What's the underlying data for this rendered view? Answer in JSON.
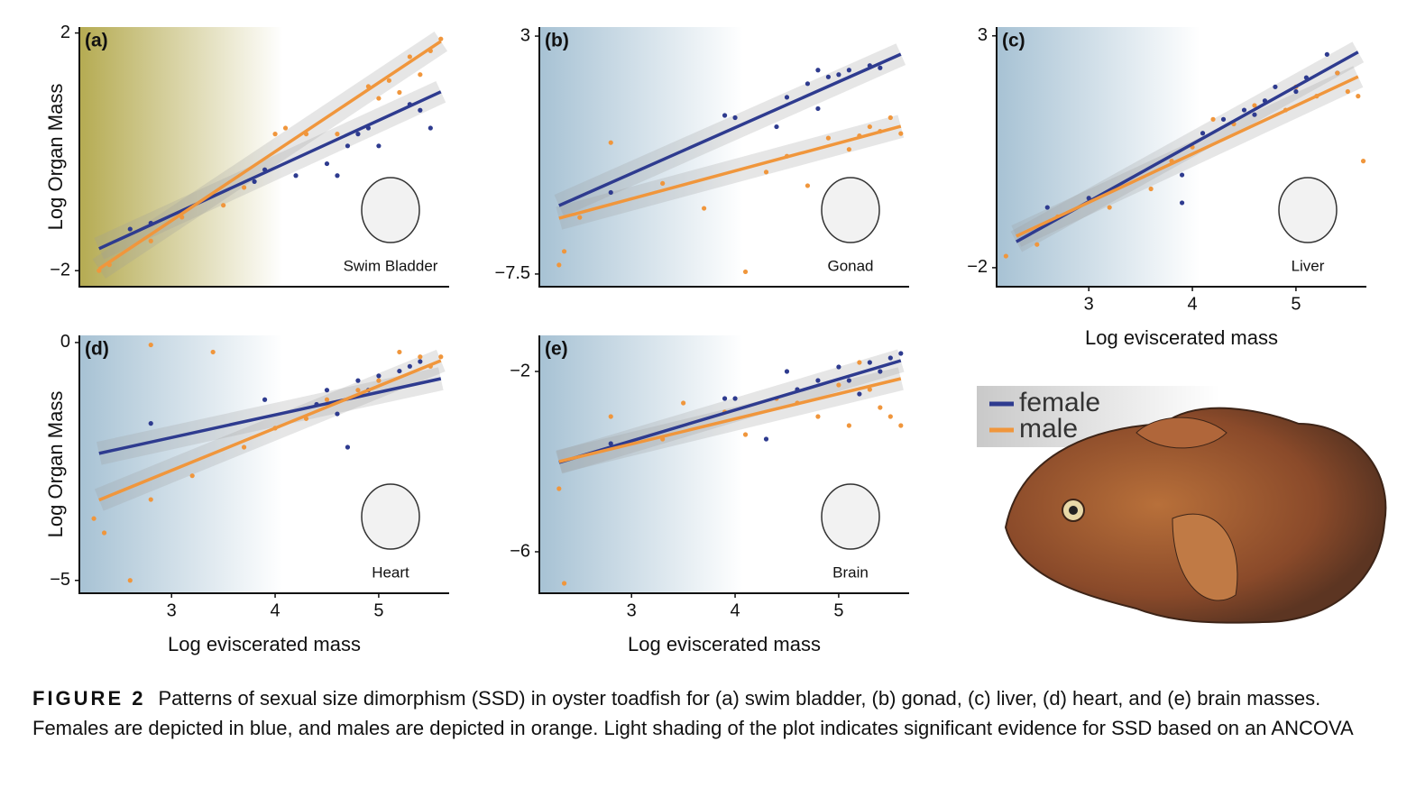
{
  "chart_data": [
    {
      "type": "scatter",
      "panel_label": "(a)",
      "organ": "Swim Bladder",
      "y_label": "Log Organ Mass",
      "shade_color": "#b5ab52",
      "xlim": [
        2.11,
        5.68
      ],
      "ylim": [
        -2.27,
        2.1
      ],
      "yticks": [
        {
          "value": -2,
          "label": "−2"
        },
        2
      ],
      "series": [
        {
          "color": "#2e3b8f",
          "x": [
            2.6,
            2.8,
            3.8,
            3.9,
            4.2,
            4.5,
            4.6,
            4.7,
            4.8,
            4.9,
            5.0,
            5.3,
            5.4,
            5.5
          ],
          "values": [
            -1.3,
            -1.2,
            -0.5,
            -0.3,
            -0.4,
            -0.2,
            -0.4,
            0.1,
            0.3,
            0.4,
            0.1,
            0.8,
            0.7,
            0.4
          ],
          "fit": {
            "x": [
              2.3,
              5.6
            ],
            "values": [
              -1.63,
              1.01
            ]
          }
        },
        {
          "color": "#f0963c",
          "x": [
            2.3,
            2.4,
            2.8,
            3.1,
            3.5,
            3.7,
            4.0,
            4.1,
            4.3,
            4.6,
            4.9,
            5.0,
            5.1,
            5.2,
            5.3,
            5.4,
            5.5,
            5.6
          ],
          "values": [
            -2.0,
            -1.9,
            -1.5,
            -1.1,
            -0.9,
            -0.6,
            0.3,
            0.4,
            0.3,
            0.3,
            1.1,
            0.9,
            1.2,
            1.0,
            1.6,
            1.3,
            1.7,
            1.9
          ],
          "fit": {
            "x": [
              2.3,
              5.6
            ],
            "values": [
              -1.97,
              1.86
            ]
          }
        }
      ]
    },
    {
      "type": "scatter",
      "panel_label": "(b)",
      "organ": "Gonad",
      "shade_color": "#a7c2d4",
      "xlim": [
        2.11,
        5.68
      ],
      "ylim": [
        -8.06,
        3.4
      ],
      "yticks": [
        {
          "value": -7.5,
          "label": "−7.5"
        },
        3
      ],
      "series": [
        {
          "color": "#2e3b8f",
          "x": [
            2.8,
            3.9,
            4.0,
            4.5,
            4.8,
            4.9,
            5.0,
            5.1,
            5.3,
            5.4,
            4.7,
            4.4,
            4.8
          ],
          "values": [
            -3.9,
            -0.5,
            -0.6,
            0.3,
            1.5,
            1.2,
            1.3,
            1.5,
            1.7,
            1.6,
            0.9,
            -1.0,
            -0.2
          ],
          "fit": {
            "x": [
              2.3,
              5.6
            ],
            "values": [
              -4.48,
              2.2
            ]
          }
        },
        {
          "color": "#f0963c",
          "x": [
            2.3,
            2.35,
            2.5,
            2.8,
            3.3,
            3.7,
            4.1,
            4.3,
            4.5,
            4.7,
            4.9,
            5.1,
            5.2,
            5.3,
            5.4,
            5.5,
            5.6
          ],
          "values": [
            -7.1,
            -6.5,
            -5.0,
            -1.7,
            -3.5,
            -4.6,
            -7.4,
            -3.0,
            -2.3,
            -3.6,
            -1.5,
            -2.0,
            -1.4,
            -1.0,
            -1.2,
            -0.6,
            -1.3
          ],
          "fit": {
            "x": [
              2.3,
              5.6
            ],
            "values": [
              -5.04,
              -0.98
            ]
          }
        }
      ]
    },
    {
      "type": "scatter",
      "panel_label": "(c)",
      "organ": "Liver",
      "x_label": "Log eviscerated mass",
      "shade_color": "#a7c2d4",
      "xlim": [
        2.11,
        5.68
      ],
      "ylim": [
        -2.41,
        3.19
      ],
      "xticks": [
        3,
        4,
        5
      ],
      "yticks": [
        {
          "value": -2,
          "label": "−2"
        },
        3
      ],
      "series": [
        {
          "color": "#2e3b8f",
          "x": [
            2.6,
            3.0,
            3.9,
            3.9,
            4.1,
            4.3,
            4.5,
            4.7,
            4.8,
            5.0,
            5.1,
            5.3,
            5.4,
            4.6
          ],
          "values": [
            -0.7,
            -0.5,
            0.0,
            -0.6,
            0.9,
            1.2,
            1.4,
            1.6,
            1.9,
            1.8,
            2.1,
            2.6,
            2.2,
            1.3
          ],
          "fit": {
            "x": [
              2.3,
              5.6
            ],
            "values": [
              -1.44,
              2.65
            ]
          }
        },
        {
          "color": "#f0963c",
          "x": [
            2.2,
            2.5,
            2.7,
            3.2,
            3.6,
            3.8,
            4.0,
            4.2,
            4.4,
            4.6,
            4.9,
            5.0,
            5.2,
            5.4,
            5.5,
            5.6,
            5.65
          ],
          "values": [
            -1.75,
            -1.5,
            -0.9,
            -0.7,
            -0.3,
            0.3,
            0.6,
            1.2,
            1.1,
            1.5,
            1.4,
            1.9,
            1.7,
            2.2,
            1.8,
            1.7,
            0.3
          ],
          "fit": {
            "x": [
              2.3,
              5.6
            ],
            "values": [
              -1.32,
              2.12
            ]
          }
        }
      ]
    },
    {
      "type": "scatter",
      "panel_label": "(d)",
      "organ": "Heart",
      "y_label": "Log Organ Mass",
      "x_label": "Log eviscerated mass",
      "shade_color": "#a7c2d4",
      "xlim": [
        2.11,
        5.68
      ],
      "ylim": [
        -5.27,
        0.15
      ],
      "xticks": [
        3,
        4,
        5
      ],
      "yticks": [
        {
          "value": -5,
          "label": "−5"
        },
        0
      ],
      "series": [
        {
          "color": "#2e3b8f",
          "x": [
            2.8,
            3.9,
            4.5,
            4.6,
            4.7,
            4.8,
            4.9,
            5.0,
            5.2,
            5.3,
            5.4,
            4.4
          ],
          "values": [
            -1.7,
            -1.2,
            -1.0,
            -1.5,
            -2.2,
            -0.8,
            -1.0,
            -0.7,
            -0.6,
            -0.5,
            -0.4,
            -1.3
          ],
          "fit": {
            "x": [
              2.3,
              5.6
            ],
            "values": [
              -2.33,
              -0.76
            ]
          }
        },
        {
          "color": "#f0963c",
          "x": [
            2.25,
            2.35,
            2.6,
            2.8,
            2.8,
            3.2,
            3.4,
            3.7,
            4.0,
            4.3,
            4.5,
            4.8,
            5.0,
            5.2,
            5.4,
            5.5,
            5.6
          ],
          "values": [
            -3.7,
            -4.0,
            -5.0,
            -0.05,
            -3.3,
            -2.8,
            -0.2,
            -2.2,
            -1.8,
            -1.6,
            -1.2,
            -1.0,
            -0.8,
            -0.2,
            -0.3,
            -0.5,
            -0.3
          ],
          "fit": {
            "x": [
              2.3,
              5.6
            ],
            "values": [
              -3.31,
              -0.38
            ]
          }
        }
      ]
    },
    {
      "type": "scatter",
      "panel_label": "(e)",
      "organ": "Brain",
      "x_label": "Log eviscerated mass",
      "shade_color": "#a7c2d4",
      "xlim": [
        2.11,
        5.68
      ],
      "ylim": [
        -6.92,
        -1.2
      ],
      "xticks": [
        3,
        4,
        5
      ],
      "yticks": [
        {
          "value": -6,
          "label": "−6"
        },
        {
          "value": -2,
          "label": "−2"
        }
      ],
      "series": [
        {
          "color": "#2e3b8f",
          "x": [
            2.8,
            3.9,
            4.0,
            4.3,
            4.5,
            4.6,
            4.8,
            5.0,
            5.1,
            5.2,
            5.3,
            5.4,
            5.5,
            5.6
          ],
          "values": [
            -3.6,
            -2.6,
            -2.6,
            -3.5,
            -2.0,
            -2.4,
            -2.2,
            -1.9,
            -2.2,
            -2.5,
            -1.8,
            -2.0,
            -1.7,
            -1.6
          ],
          "fit": {
            "x": [
              2.3,
              5.6
            ],
            "values": [
              -4.02,
              -1.76
            ]
          }
        },
        {
          "color": "#f0963c",
          "x": [
            2.3,
            2.35,
            2.8,
            3.3,
            3.5,
            3.9,
            4.1,
            4.4,
            4.6,
            4.8,
            5.0,
            5.1,
            5.2,
            5.3,
            5.4,
            5.5,
            5.6
          ],
          "values": [
            -4.6,
            -6.7,
            -3.0,
            -3.5,
            -2.7,
            -2.9,
            -3.4,
            -2.6,
            -2.7,
            -3.0,
            -2.3,
            -3.2,
            -1.8,
            -2.4,
            -2.8,
            -3.0,
            -3.2
          ],
          "fit": {
            "x": [
              2.3,
              5.6
            ],
            "values": [
              -4.0,
              -2.16
            ]
          }
        }
      ]
    }
  ],
  "legend": [
    {
      "name": "female",
      "color": "#2e3b8f"
    },
    {
      "name": "male",
      "color": "#f0963c"
    }
  ],
  "caption": {
    "label": "FIGURE 2",
    "text": "Patterns of sexual size dimorphism (SSD) in oyster toadfish for (a) swim bladder, (b) gonad, (c) liver, (d) heart, and (e) brain masses. Females are depicted in blue, and males are depicted in orange. Light shading of the plot indicates significant evidence for SSD based on an ANCOVA"
  }
}
